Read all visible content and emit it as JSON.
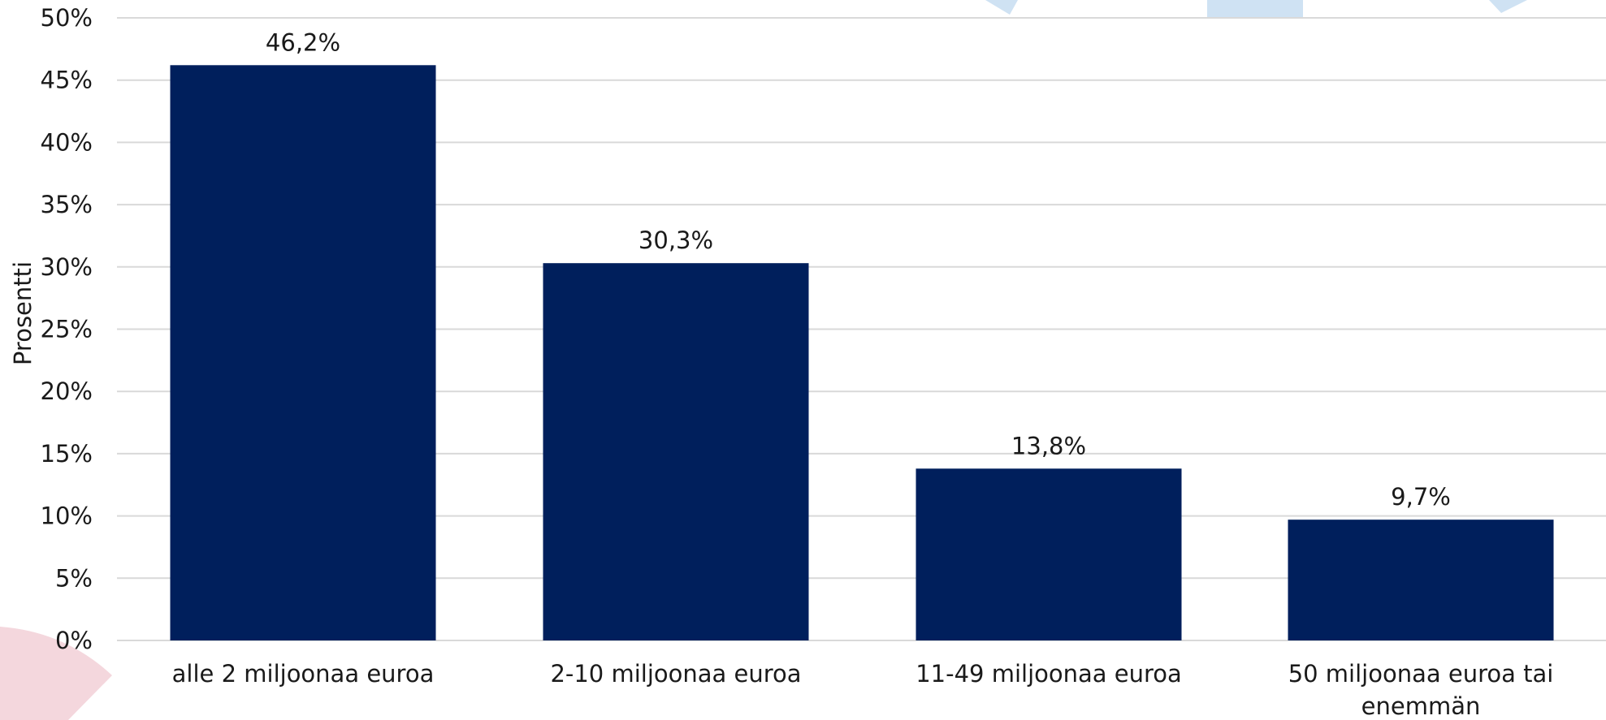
{
  "chart_data": {
    "type": "bar",
    "categories": [
      [
        "alle 2 miljoonaa euroa"
      ],
      [
        "2-10 miljoonaa euroa"
      ],
      [
        "11-49 miljoonaa euroa"
      ],
      [
        "50 miljoonaa euroa tai",
        "enemmän"
      ]
    ],
    "values": [
      46.2,
      30.3,
      13.8,
      9.7
    ],
    "data_labels": [
      "46,2%",
      "30,3%",
      "13,8%",
      "9,7%"
    ],
    "title": "",
    "xlabel": "",
    "ylabel": "Prosentti",
    "ylim": [
      0,
      50
    ],
    "yticks": [
      0,
      5,
      10,
      15,
      20,
      25,
      30,
      35,
      40,
      45,
      50
    ],
    "ytick_labels": [
      "0%",
      "5%",
      "10%",
      "15%",
      "20%",
      "25%",
      "30%",
      "35%",
      "40%",
      "45%",
      "50%"
    ],
    "grid": true,
    "legend": "none",
    "colors": {
      "bar": "#001f5c",
      "grid": "#d9d9d9",
      "decor_light_blue": "#cfe2f3",
      "decor_pink": "#f4d7dd"
    }
  }
}
